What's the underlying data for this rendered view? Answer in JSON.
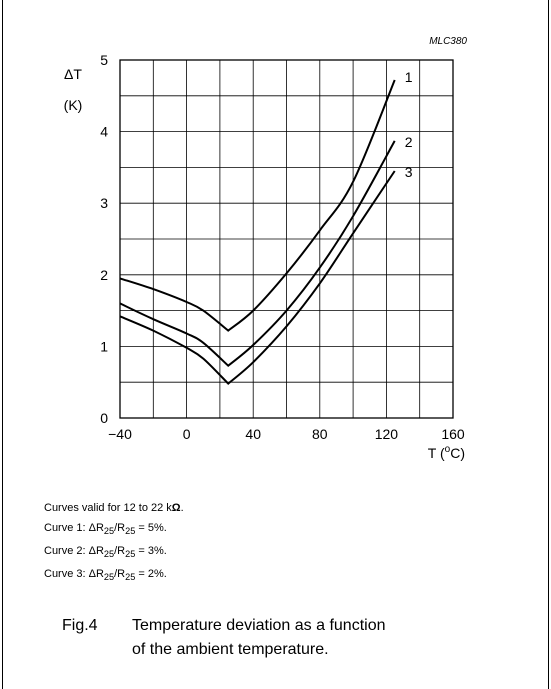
{
  "figure_code": "MLC380",
  "chart_data": {
    "type": "line",
    "title": "",
    "xlabel": "T (°C)",
    "ylabel_top": "ΔT",
    "ylabel_unit": "(K)",
    "xlim": [
      -40,
      160
    ],
    "ylim": [
      0,
      5
    ],
    "x_ticks": [
      -40,
      0,
      40,
      80,
      120,
      160
    ],
    "x_tick_labels": [
      "−40",
      "0",
      "40",
      "80",
      "120",
      "160"
    ],
    "y_ticks": [
      0,
      1,
      2,
      3,
      4,
      5
    ],
    "y_tick_labels": [
      "0",
      "1",
      "2",
      "3",
      "4",
      "5"
    ],
    "grid": true,
    "grid_x_step": 20,
    "grid_y_step": 0.5,
    "series": [
      {
        "name": "1",
        "points": [
          [
            -40,
            1.95
          ],
          [
            -20,
            1.8
          ],
          [
            0,
            1.62
          ],
          [
            10,
            1.5
          ],
          [
            25,
            1.22
          ],
          [
            40,
            1.5
          ],
          [
            60,
            2.02
          ],
          [
            80,
            2.62
          ],
          [
            100,
            3.3
          ],
          [
            125,
            4.72
          ]
        ]
      },
      {
        "name": "2",
        "points": [
          [
            -40,
            1.6
          ],
          [
            -20,
            1.38
          ],
          [
            0,
            1.18
          ],
          [
            10,
            1.05
          ],
          [
            25,
            0.73
          ],
          [
            40,
            1.02
          ],
          [
            60,
            1.5
          ],
          [
            80,
            2.1
          ],
          [
            100,
            2.82
          ],
          [
            125,
            3.87
          ]
        ]
      },
      {
        "name": "3",
        "points": [
          [
            -40,
            1.42
          ],
          [
            -20,
            1.22
          ],
          [
            0,
            0.98
          ],
          [
            10,
            0.83
          ],
          [
            25,
            0.48
          ],
          [
            40,
            0.78
          ],
          [
            60,
            1.28
          ],
          [
            80,
            1.88
          ],
          [
            100,
            2.58
          ],
          [
            125,
            3.45
          ]
        ]
      }
    ]
  },
  "notes": {
    "line1_a": "Curves valid for 12 to 22 k",
    "line1_b": "Ω",
    "line1_c": ".",
    "curve1_a": "Curve 1: ΔR",
    "curve1_eq": "/R",
    "curve1_b": " = 5%.",
    "curve2_a": "Curve 2: ΔR",
    "curve2_eq": "/R",
    "curve2_b": " = 3%.",
    "curve3_a": "Curve 3: ΔR",
    "curve3_eq": "/R",
    "curve3_b": " = 2%.",
    "sub": "25"
  },
  "caption": {
    "number": "Fig.4",
    "line1": "Temperature deviation as a function",
    "line2": "of the ambient temperature."
  }
}
